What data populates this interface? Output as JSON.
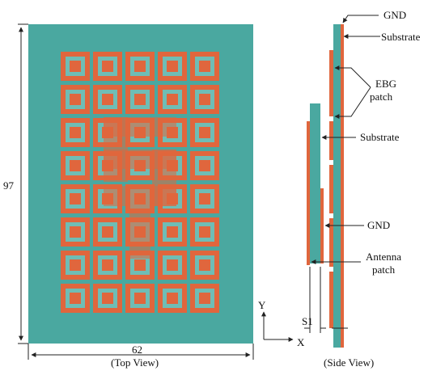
{
  "colors": {
    "substrate": "#4aa8a0",
    "substrate_light": "#6fbdb5",
    "metal": "#e0663d",
    "line": "#222222",
    "background": "#ffffff"
  },
  "top_view": {
    "caption": "(Top View)",
    "width_label": "62",
    "height_label": "97",
    "ebg_grid": {
      "columns": 5,
      "rows": 8
    }
  },
  "side_view": {
    "caption": "(Side View)",
    "labels": {
      "gnd_top": "GND",
      "substrate_top": "Substrate",
      "ebg_patch": "EBG\npatch",
      "substrate_mid": "Substrate",
      "gnd_mid": "GND",
      "antenna_patch": "Antenna\npatch",
      "s1": "S1"
    }
  },
  "axes": {
    "y": "Y",
    "x": "X"
  }
}
